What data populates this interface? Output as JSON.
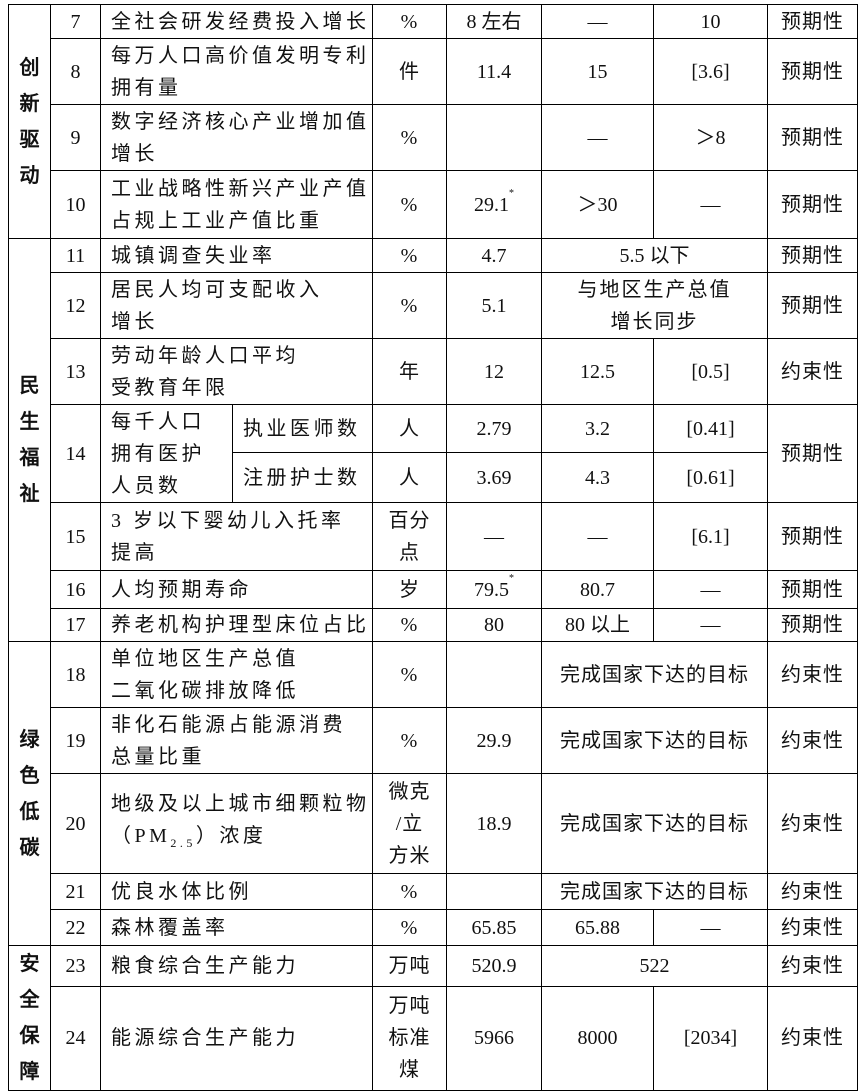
{
  "categories": [
    "创新驱动",
    "民生福祉",
    "绿色低碳",
    "安全保障"
  ],
  "rows": [
    {
      "no": "7",
      "name": [
        "全社会研发经费投入增长"
      ],
      "unit": [
        "%"
      ],
      "base": "8 左右",
      "target": "—",
      "cum": "10",
      "attr": "预期性"
    },
    {
      "no": "8",
      "name": [
        "每万人口高价值发明专利",
        "拥有量"
      ],
      "unit": [
        "件"
      ],
      "base": "11.4",
      "target": "15",
      "cum": "[3.6]",
      "attr": "预期性"
    },
    {
      "no": "9",
      "name": [
        "数字经济核心产业增加值",
        "增长"
      ],
      "unit": [
        "%"
      ],
      "base": "",
      "target": "—",
      "cum": "＞8",
      "attr": "预期性"
    },
    {
      "no": "10",
      "name": [
        "工业战略性新兴产业产值",
        "占规上工业产值比重"
      ],
      "unit": [
        "%"
      ],
      "base": "29.1",
      "base_note": "*",
      "target": "＞30",
      "cum": "—",
      "attr": "预期性"
    },
    {
      "no": "11",
      "name": [
        "城镇调查失业率"
      ],
      "unit": [
        "%"
      ],
      "base": "4.7",
      "target": [
        "5.5 以下"
      ],
      "attr": "预期性"
    },
    {
      "no": "12",
      "name": [
        "居民人均可支配收入",
        "增长"
      ],
      "unit": [
        "%"
      ],
      "base": "5.1",
      "target": [
        "与地区生产总值",
        "增长同步"
      ],
      "attr": "预期性"
    },
    {
      "no": "13",
      "name": [
        "劳动年龄人口平均",
        "受教育年限"
      ],
      "unit": [
        "年"
      ],
      "base": "12",
      "target": "12.5",
      "cum": "[0.5]",
      "attr": "约束性"
    },
    {
      "no": "14",
      "group": [
        "每千人口",
        "拥有医护",
        "人员数"
      ],
      "name": [
        "执业医师数"
      ],
      "unit": [
        "人"
      ],
      "base": "2.79",
      "target": "3.2",
      "cum": "[0.41]",
      "attr": "预期性"
    },
    {
      "name": [
        "注册护士数"
      ],
      "unit": [
        "人"
      ],
      "base": "3.69",
      "target": "4.3",
      "cum": "[0.61]"
    },
    {
      "no": "15",
      "name": [
        "3 岁以下婴幼儿入托率",
        "提高"
      ],
      "unit": [
        "百分",
        "点"
      ],
      "base": "—",
      "target": "—",
      "cum": "[6.1]",
      "attr": "预期性"
    },
    {
      "no": "16",
      "name": [
        "人均预期寿命"
      ],
      "unit": [
        "岁"
      ],
      "base": "79.5",
      "base_note": "*",
      "target": "80.7",
      "cum": "—",
      "attr": "预期性"
    },
    {
      "no": "17",
      "name": [
        "养老机构护理型床位占比"
      ],
      "unit": [
        "%"
      ],
      "base": "80",
      "target": "80 以上",
      "cum": "—",
      "attr": "预期性"
    },
    {
      "no": "18",
      "name": [
        "单位地区生产总值",
        "二氧化碳排放降低"
      ],
      "unit": [
        "%"
      ],
      "base": "",
      "target": [
        "完成国家下达的目标"
      ],
      "attr": "约束性"
    },
    {
      "no": "19",
      "name": [
        "非化石能源占能源消费",
        "总量比重"
      ],
      "unit": [
        "%"
      ],
      "base": "29.9",
      "target": [
        "完成国家下达的目标"
      ],
      "attr": "约束性"
    },
    {
      "no": "20",
      "name": [
        "地级及以上城市细颗粒物",
        "（PM",
        "2.5",
        "）浓度"
      ],
      "unit": [
        "微克",
        "/立",
        "方米"
      ],
      "base": "18.9",
      "target": [
        "完成国家下达的目标"
      ],
      "attr": "约束性"
    },
    {
      "no": "21",
      "name": [
        "优良水体比例"
      ],
      "unit": [
        "%"
      ],
      "base": "",
      "target": [
        "完成国家下达的目标"
      ],
      "attr": "约束性"
    },
    {
      "no": "22",
      "name": [
        "森林覆盖率"
      ],
      "unit": [
        "%"
      ],
      "base": "65.85",
      "target": "65.88",
      "cum": "—",
      "attr": "约束性"
    },
    {
      "no": "23",
      "name": [
        "粮食综合生产能力"
      ],
      "unit": [
        "万吨"
      ],
      "base": "520.9",
      "target": [
        "522"
      ],
      "attr": "约束性"
    },
    {
      "no": "24",
      "name": [
        "能源综合生产能力"
      ],
      "unit": [
        "万吨",
        "标准",
        "煤"
      ],
      "base": "5966",
      "target": "8000",
      "cum": "[2034]",
      "attr": "约束性"
    }
  ]
}
